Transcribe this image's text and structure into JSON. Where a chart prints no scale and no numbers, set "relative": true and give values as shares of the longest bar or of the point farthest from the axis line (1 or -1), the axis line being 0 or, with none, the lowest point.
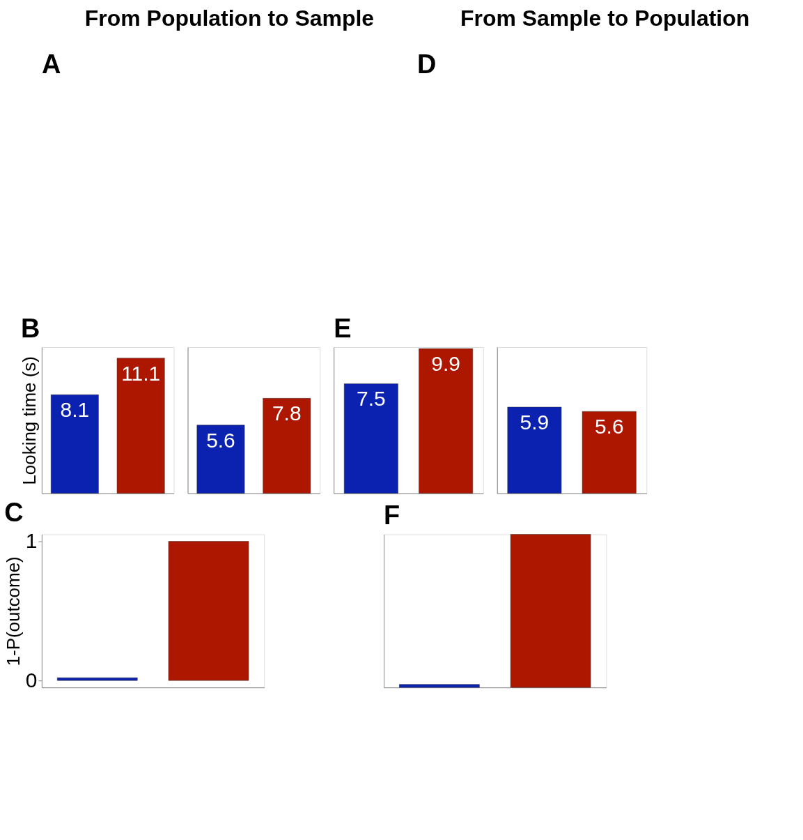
{
  "chart_data": [
    {
      "type": "bar",
      "title": "B",
      "categories": [
        null,
        null
      ],
      "values": [
        8.1,
        11.1
      ],
      "colors": [
        "#0b22b0",
        "#ad1700"
      ],
      "ylabel": "Looking time (s)",
      "ylim": [
        0,
        12
      ],
      "data_labels": true,
      "tick_labels": false
    },
    {
      "type": "bar",
      "categories": [
        null,
        null
      ],
      "values": [
        5.6,
        7.8
      ],
      "colors": [
        "#0b22b0",
        "#ad1700"
      ],
      "ylim": [
        0,
        12
      ],
      "data_labels": true,
      "tick_labels": false
    },
    {
      "type": "bar",
      "title": "E",
      "categories": [
        null,
        null
      ],
      "values": [
        7.5,
        9.9
      ],
      "colors": [
        "#0b22b0",
        "#ad1700"
      ],
      "ylim": [
        0,
        10
      ],
      "data_labels": true,
      "tick_labels": false
    },
    {
      "type": "bar",
      "categories": [
        null,
        null
      ],
      "values": [
        5.9,
        5.6
      ],
      "colors": [
        "#0b22b0",
        "#ad1700"
      ],
      "ylim": [
        0,
        10
      ],
      "data_labels": true,
      "tick_labels": false
    },
    {
      "type": "bar",
      "title": "C",
      "categories": [
        null,
        null
      ],
      "values": [
        0.02,
        1
      ],
      "colors": [
        "#0b22b0",
        "#ad1700"
      ],
      "ylabel": "1-P(outcome)",
      "ylim": [
        -0.05,
        1.05
      ],
      "yticks": [
        0,
        1
      ],
      "tick_labels": "y"
    },
    {
      "type": "bar",
      "title": "F",
      "categories": [
        null,
        null
      ],
      "values": [
        0.02,
        1
      ],
      "colors": [
        "#0b22b0",
        "#ad1700"
      ],
      "relative": true,
      "tick_labels": false
    },
    {
      "type": "other",
      "annotations": [
        "From Population to Sample",
        "From Sample to Population",
        "A",
        "D"
      ]
    }
  ]
}
